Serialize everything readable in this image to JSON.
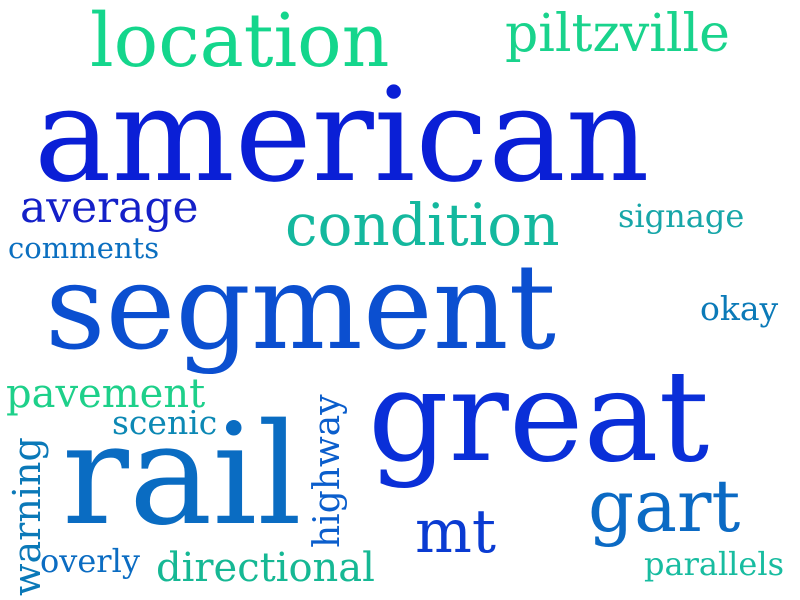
{
  "words": {
    "american": {
      "text": "american",
      "color": "#0a1fd6"
    },
    "segment": {
      "text": "segment",
      "color": "#0b4fd0"
    },
    "great": {
      "text": "great",
      "color": "#0a2fd8"
    },
    "rail": {
      "text": "rail",
      "color": "#0a6cc2"
    },
    "location": {
      "text": "location",
      "color": "#14d68c"
    },
    "piltzville": {
      "text": "piltzville",
      "color": "#19d38c"
    },
    "condition": {
      "text": "condition",
      "color": "#14b89e"
    },
    "average": {
      "text": "average",
      "color": "#1420c8"
    },
    "comments": {
      "text": "comments",
      "color": "#0b6fc0"
    },
    "signage": {
      "text": "signage",
      "color": "#17a6a8"
    },
    "okay": {
      "text": "okay",
      "color": "#0b7ab8"
    },
    "pavement": {
      "text": "pavement",
      "color": "#1ed08a"
    },
    "scenic": {
      "text": "scenic",
      "color": "#0c88b4"
    },
    "warning": {
      "text": "warning",
      "color": "#0b79b8"
    },
    "highway": {
      "text": "highway",
      "color": "#0b5ecc"
    },
    "gart": {
      "text": "gart",
      "color": "#0b6ac4"
    },
    "mt": {
      "text": "mt",
      "color": "#0a3bd2"
    },
    "overly": {
      "text": "overly",
      "color": "#0b6cc2"
    },
    "directional": {
      "text": "directional",
      "color": "#16b894"
    },
    "parallels": {
      "text": "parallels",
      "color": "#18bca0"
    }
  }
}
